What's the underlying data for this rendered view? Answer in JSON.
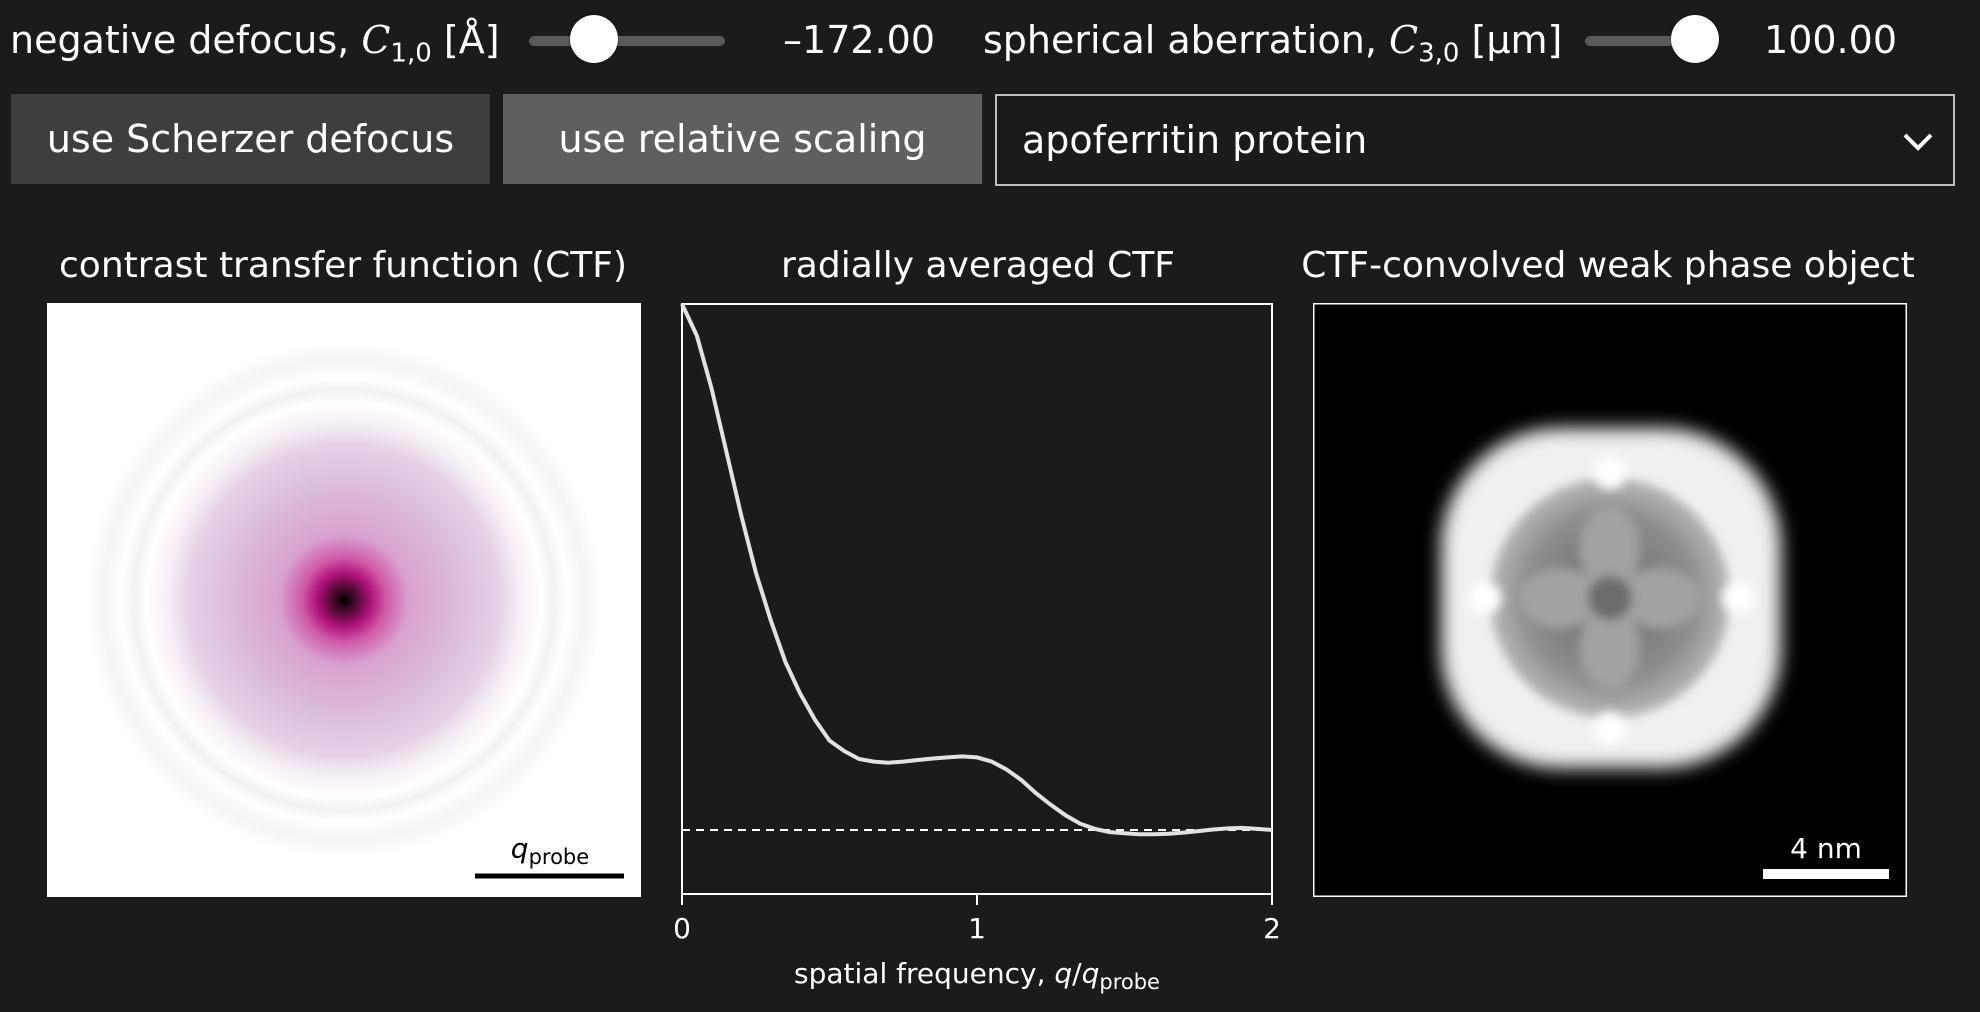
{
  "controls": {
    "defocus": {
      "label_main": "negative defocus, ",
      "sym": "C",
      "sub": "1,0",
      "unit": "[Å]",
      "value": "–172.00",
      "slider_fraction": 0.31
    },
    "spherical": {
      "label_main": "spherical aberration, ",
      "sym": "C",
      "sub": "3,0",
      "unit": "[μm]",
      "value": "100.00",
      "slider_fraction": 0.82
    }
  },
  "buttons": {
    "scherzer": "use Scherzer defocus",
    "relative": "use relative scaling"
  },
  "colors": {
    "btn_scherzer": "#3e3e3e",
    "btn_relative": "#5f5f5f",
    "ctf_accent": "#c0007a"
  },
  "specimen_select": {
    "selected": "apoferritin protein"
  },
  "panels": {
    "ctf": {
      "title": "contrast transfer function (CTF)",
      "scalebar_sym": "q",
      "scalebar_sub": "probe"
    },
    "radial": {
      "title": "radially averaged CTF",
      "xlabel_main": "spatial frequency, ",
      "xlabel_q1": "q",
      "xlabel_slash": "/",
      "xlabel_q2": "q",
      "xlabel_sub": "probe"
    },
    "wpo": {
      "title": "CTF-convolved weak phase object",
      "scalebar_label": "4 nm"
    }
  },
  "chart_data": {
    "type": "line",
    "title": "radially averaged CTF",
    "xlabel": "spatial frequency, q/qprobe",
    "ylabel": "",
    "xlim": [
      0,
      2
    ],
    "xticks": [
      "0",
      "1",
      "2"
    ],
    "reference_line": "dashed horizontal baseline",
    "series": [
      {
        "x": [
          0,
          0.05,
          0.1,
          0.15,
          0.2,
          0.25,
          0.3,
          0.35,
          0.4,
          0.45,
          0.5,
          0.55,
          0.6,
          0.65,
          0.7,
          0.75,
          0.8,
          0.85,
          0.9,
          0.95,
          1.0,
          1.05,
          1.1,
          1.15,
          1.2,
          1.25,
          1.3,
          1.35,
          1.4,
          1.45,
          1.5,
          1.55,
          1.6,
          1.65,
          1.7,
          1.75,
          1.8,
          1.85,
          1.9,
          1.95,
          2.0
        ],
        "y": [
          1.0,
          0.94,
          0.84,
          0.72,
          0.6,
          0.49,
          0.4,
          0.32,
          0.26,
          0.21,
          0.17,
          0.15,
          0.135,
          0.13,
          0.128,
          0.13,
          0.133,
          0.136,
          0.138,
          0.14,
          0.138,
          0.13,
          0.115,
          0.095,
          0.07,
          0.048,
          0.028,
          0.012,
          0.002,
          -0.004,
          -0.006,
          -0.008,
          -0.008,
          -0.007,
          -0.005,
          -0.002,
          0.001,
          0.003,
          0.004,
          0.002,
          0.0
        ]
      }
    ]
  }
}
